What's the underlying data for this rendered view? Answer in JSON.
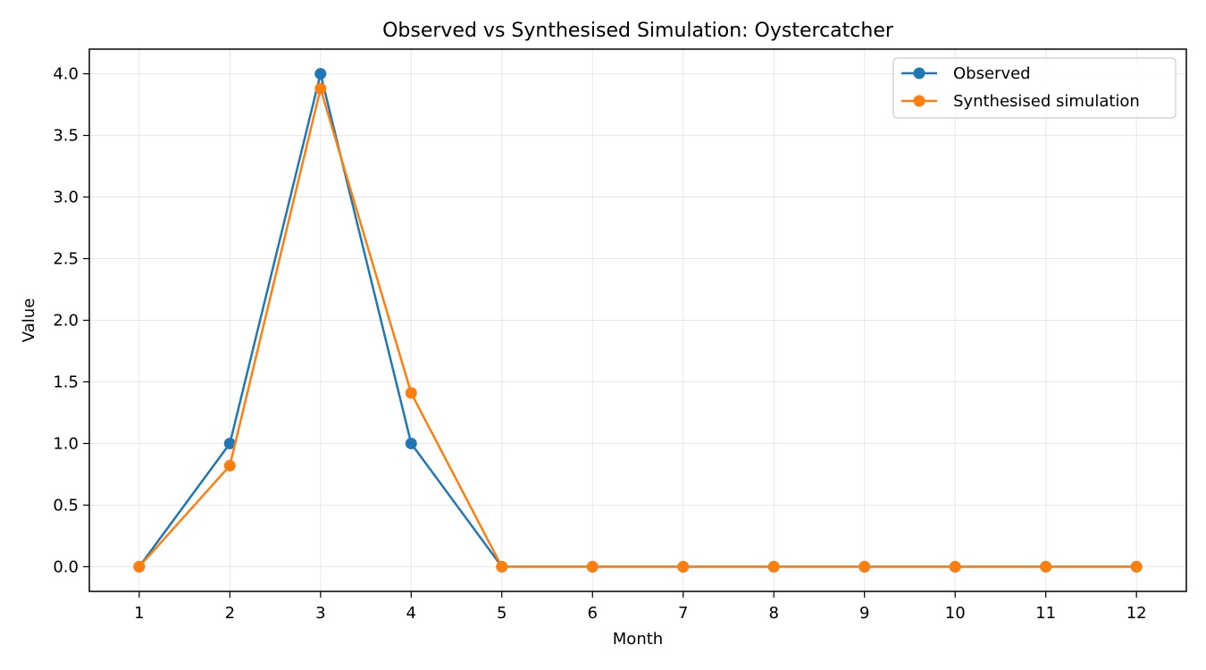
{
  "chart_data": {
    "type": "line",
    "title": "Observed vs Synthesised Simulation: Oystercatcher",
    "xlabel": "Month",
    "ylabel": "Value",
    "x": [
      1,
      2,
      3,
      4,
      5,
      6,
      7,
      8,
      9,
      10,
      11,
      12
    ],
    "xlim": [
      0.45,
      12.55
    ],
    "ylim": [
      -0.2,
      4.2
    ],
    "yticks": [
      0.0,
      0.5,
      1.0,
      1.5,
      2.0,
      2.5,
      3.0,
      3.5,
      4.0
    ],
    "ytick_labels": [
      "0.0",
      "0.5",
      "1.0",
      "1.5",
      "2.0",
      "2.5",
      "3.0",
      "3.5",
      "4.0"
    ],
    "xtick_labels": [
      "1",
      "2",
      "3",
      "4",
      "5",
      "6",
      "7",
      "8",
      "9",
      "10",
      "11",
      "12"
    ],
    "grid": true,
    "legend_position": "top-right",
    "series": [
      {
        "name": "Observed",
        "color": "#1f77b4",
        "values": [
          0,
          1,
          4,
          1,
          0,
          0,
          0,
          0,
          0,
          0,
          0,
          0
        ]
      },
      {
        "name": "Synthesised simulation",
        "color": "#ff7f0e",
        "values": [
          0,
          0.82,
          3.88,
          1.41,
          0,
          0,
          0,
          0,
          0,
          0,
          0,
          0
        ]
      }
    ]
  }
}
